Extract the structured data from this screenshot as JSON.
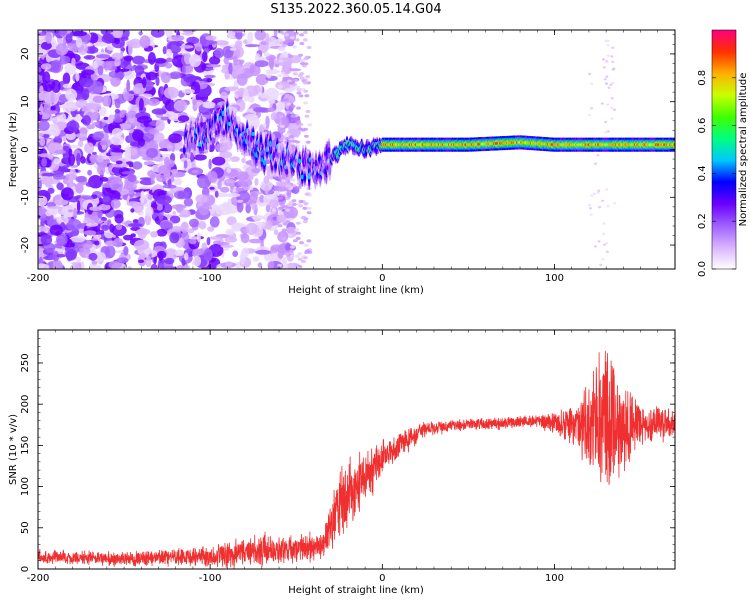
{
  "title": "S135.2022.360.05.14.G04",
  "chart_data": [
    {
      "type": "heatmap",
      "xlabel": "Height of straight line (km)",
      "ylabel": "Frequency (Hz)",
      "xlim": [
        -200,
        170
      ],
      "ylim": [
        -25,
        25
      ],
      "xticks": [
        -200,
        -100,
        0,
        100
      ],
      "yticks": [
        -20,
        -10,
        0,
        10,
        20
      ],
      "colorbar": {
        "label": "Normalized spectral amplitude",
        "range": [
          0,
          1
        ],
        "ticks": [
          "0.0",
          "0.2",
          "0.4",
          "0.6",
          "0.8"
        ],
        "colors": [
          "#ffffff",
          "#d9b3ff",
          "#a060ff",
          "#6a00ff",
          "#0000ff",
          "#00c8ff",
          "#00ff80",
          "#40ff00",
          "#c8ff00",
          "#ffb000",
          "#ff3000",
          "#ff0080"
        ]
      },
      "ridge": [
        {
          "x": -110,
          "y": 2
        },
        {
          "x": -90,
          "y": 6
        },
        {
          "x": -80,
          "y": 2
        },
        {
          "x": -70,
          "y": 0
        },
        {
          "x": -60,
          "y": -2
        },
        {
          "x": -50,
          "y": -3
        },
        {
          "x": -40,
          "y": -4
        },
        {
          "x": -30,
          "y": -2
        },
        {
          "x": -20,
          "y": 1
        },
        {
          "x": -10,
          "y": 0
        },
        {
          "x": 0,
          "y": 1
        },
        {
          "x": 50,
          "y": 1
        },
        {
          "x": 80,
          "y": 1.5
        },
        {
          "x": 100,
          "y": 1
        },
        {
          "x": 170,
          "y": 1
        }
      ]
    },
    {
      "type": "line",
      "xlabel": "Height of straight line (km)",
      "ylabel": "SNR (10 * v/v)",
      "xlim": [
        -200,
        170
      ],
      "ylim": [
        0,
        290
      ],
      "xticks": [
        -200,
        -100,
        0,
        100
      ],
      "yticks": [
        0,
        50,
        100,
        150,
        200,
        250
      ],
      "color": "#f03030",
      "envelope": [
        {
          "x": -200,
          "mean": 15,
          "amp": 10
        },
        {
          "x": -150,
          "mean": 12,
          "amp": 10
        },
        {
          "x": -100,
          "mean": 15,
          "amp": 14
        },
        {
          "x": -70,
          "mean": 22,
          "amp": 25
        },
        {
          "x": -50,
          "mean": 25,
          "amp": 20
        },
        {
          "x": -35,
          "mean": 28,
          "amp": 20
        },
        {
          "x": -25,
          "mean": 80,
          "amp": 50
        },
        {
          "x": -10,
          "mean": 110,
          "amp": 40
        },
        {
          "x": 0,
          "mean": 135,
          "amp": 25
        },
        {
          "x": 25,
          "mean": 170,
          "amp": 10
        },
        {
          "x": 50,
          "mean": 175,
          "amp": 8
        },
        {
          "x": 90,
          "mean": 180,
          "amp": 10
        },
        {
          "x": 110,
          "mean": 175,
          "amp": 25
        },
        {
          "x": 130,
          "mean": 175,
          "amp": 110
        },
        {
          "x": 150,
          "mean": 175,
          "amp": 30
        },
        {
          "x": 170,
          "mean": 175,
          "amp": 20
        }
      ]
    }
  ]
}
